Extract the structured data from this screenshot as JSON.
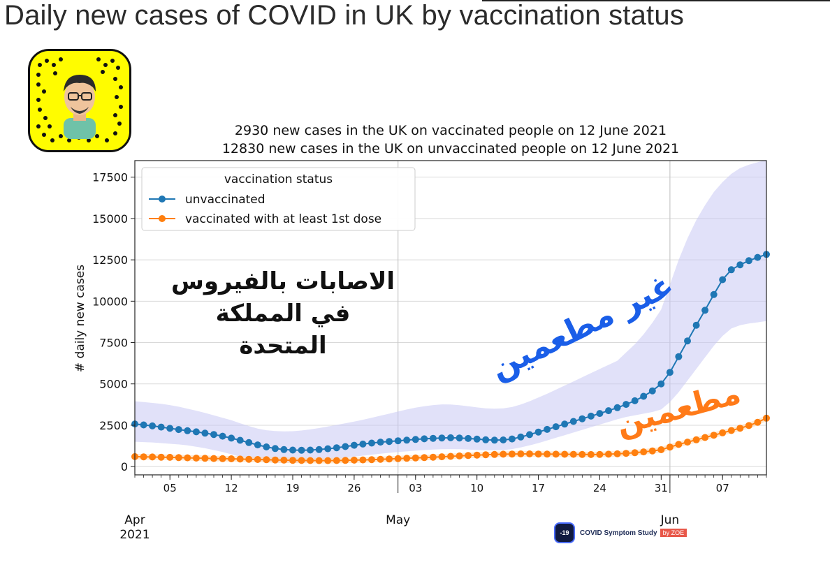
{
  "page_title": "Daily new cases of COVID in UK by vaccination status",
  "chart_data": {
    "type": "line",
    "title": "2930 new cases in the UK on vaccinated people on 12 June 2021",
    "subtitle": "12830 new cases in the UK on unvaccinated people on 12 June 2021",
    "xlabel": "",
    "ylabel": "# daily new cases",
    "xlim": [
      "2021-04-01",
      "2021-06-12"
    ],
    "ylim": [
      -500,
      18500
    ],
    "yticks": [
      0,
      2500,
      5000,
      7500,
      10000,
      12500,
      15000,
      17500
    ],
    "ytick_labels": [
      "0",
      "2500",
      "5000",
      "7500",
      "10000",
      "12500",
      "15000",
      "17500"
    ],
    "xticks": [
      "2021-04-05",
      "2021-04-12",
      "2021-04-19",
      "2021-04-26",
      "2021-05-03",
      "2021-05-10",
      "2021-05-17",
      "2021-05-24",
      "2021-05-31",
      "2021-06-07"
    ],
    "xtick_labels": [
      "05",
      "12",
      "19",
      "26",
      "03",
      "10",
      "17",
      "24",
      "31",
      "07"
    ],
    "major_ticks": [
      "2021-05-01",
      "2021-06-01"
    ],
    "month_labels": [
      {
        "date": "2021-04-01",
        "label": "Apr\n2021"
      },
      {
        "date": "2021-05-01",
        "label": "May"
      },
      {
        "date": "2021-06-01",
        "label": "Jun"
      }
    ],
    "grid": "major",
    "legend": {
      "title": "vaccination status",
      "placement": "top-left"
    },
    "series": [
      {
        "name": "unvaccinated",
        "color": "#1f77b4",
        "x": [
          "2021-04-01",
          "2021-04-02",
          "2021-04-03",
          "2021-04-04",
          "2021-04-05",
          "2021-04-06",
          "2021-04-07",
          "2021-04-08",
          "2021-04-09",
          "2021-04-10",
          "2021-04-11",
          "2021-04-12",
          "2021-04-13",
          "2021-04-14",
          "2021-04-15",
          "2021-04-16",
          "2021-04-17",
          "2021-04-18",
          "2021-04-19",
          "2021-04-20",
          "2021-04-21",
          "2021-04-22",
          "2021-04-23",
          "2021-04-24",
          "2021-04-25",
          "2021-04-26",
          "2021-04-27",
          "2021-04-28",
          "2021-04-29",
          "2021-04-30",
          "2021-05-01",
          "2021-05-02",
          "2021-05-03",
          "2021-05-04",
          "2021-05-05",
          "2021-05-06",
          "2021-05-07",
          "2021-05-08",
          "2021-05-09",
          "2021-05-10",
          "2021-05-11",
          "2021-05-12",
          "2021-05-13",
          "2021-05-14",
          "2021-05-15",
          "2021-05-16",
          "2021-05-17",
          "2021-05-18",
          "2021-05-19",
          "2021-05-20",
          "2021-05-21",
          "2021-05-22",
          "2021-05-23",
          "2021-05-24",
          "2021-05-25",
          "2021-05-26",
          "2021-05-27",
          "2021-05-28",
          "2021-05-29",
          "2021-05-30",
          "2021-05-31",
          "2021-06-01",
          "2021-06-02",
          "2021-06-03",
          "2021-06-04",
          "2021-06-05",
          "2021-06-06",
          "2021-06-07",
          "2021-06-08",
          "2021-06-09",
          "2021-06-10",
          "2021-06-11",
          "2021-06-12"
        ],
        "values": [
          2580,
          2520,
          2460,
          2390,
          2310,
          2240,
          2170,
          2100,
          2020,
          1940,
          1840,
          1720,
          1590,
          1450,
          1310,
          1190,
          1090,
          1030,
          1000,
          990,
          1000,
          1030,
          1080,
          1140,
          1210,
          1290,
          1360,
          1420,
          1480,
          1520,
          1560,
          1600,
          1640,
          1680,
          1710,
          1730,
          1740,
          1730,
          1700,
          1660,
          1620,
          1600,
          1610,
          1670,
          1790,
          1930,
          2090,
          2250,
          2410,
          2570,
          2730,
          2890,
          3050,
          3210,
          3380,
          3560,
          3760,
          3980,
          4250,
          4580,
          5000,
          5700,
          6650,
          7600,
          8550,
          9450,
          10400,
          11300,
          11900,
          12200,
          12450,
          12650,
          12830
        ]
      },
      {
        "name": "vaccinated with at least 1st dose",
        "color": "#ff7f0e",
        "x": [
          "2021-04-01",
          "2021-04-02",
          "2021-04-03",
          "2021-04-04",
          "2021-04-05",
          "2021-04-06",
          "2021-04-07",
          "2021-04-08",
          "2021-04-09",
          "2021-04-10",
          "2021-04-11",
          "2021-04-12",
          "2021-04-13",
          "2021-04-14",
          "2021-04-15",
          "2021-04-16",
          "2021-04-17",
          "2021-04-18",
          "2021-04-19",
          "2021-04-20",
          "2021-04-21",
          "2021-04-22",
          "2021-04-23",
          "2021-04-24",
          "2021-04-25",
          "2021-04-26",
          "2021-04-27",
          "2021-04-28",
          "2021-04-29",
          "2021-04-30",
          "2021-05-01",
          "2021-05-02",
          "2021-05-03",
          "2021-05-04",
          "2021-05-05",
          "2021-05-06",
          "2021-05-07",
          "2021-05-08",
          "2021-05-09",
          "2021-05-10",
          "2021-05-11",
          "2021-05-12",
          "2021-05-13",
          "2021-05-14",
          "2021-05-15",
          "2021-05-16",
          "2021-05-17",
          "2021-05-18",
          "2021-05-19",
          "2021-05-20",
          "2021-05-21",
          "2021-05-22",
          "2021-05-23",
          "2021-05-24",
          "2021-05-25",
          "2021-05-26",
          "2021-05-27",
          "2021-05-28",
          "2021-05-29",
          "2021-05-30",
          "2021-05-31",
          "2021-06-01",
          "2021-06-02",
          "2021-06-03",
          "2021-06-04",
          "2021-06-05",
          "2021-06-06",
          "2021-06-07",
          "2021-06-08",
          "2021-06-09",
          "2021-06-10",
          "2021-06-11",
          "2021-06-12"
        ],
        "values": [
          600,
          590,
          580,
          570,
          560,
          545,
          530,
          515,
          500,
          490,
          480,
          470,
          455,
          440,
          430,
          415,
          400,
          390,
          380,
          370,
          365,
          360,
          360,
          365,
          375,
          390,
          405,
          420,
          440,
          460,
          480,
          500,
          520,
          545,
          570,
          595,
          620,
          645,
          670,
          695,
          715,
          735,
          750,
          760,
          765,
          765,
          760,
          755,
          750,
          745,
          740,
          735,
          730,
          735,
          750,
          770,
          800,
          840,
          890,
          950,
          1020,
          1180,
          1340,
          1480,
          1620,
          1760,
          1900,
          2040,
          2180,
          2320,
          2480,
          2680,
          2930
        ]
      }
    ],
    "ci_band": {
      "series": "unvaccinated",
      "color": "#c8c8f4",
      "upper": [
        3950,
        3900,
        3850,
        3800,
        3720,
        3620,
        3500,
        3380,
        3250,
        3100,
        2950,
        2800,
        2620,
        2450,
        2300,
        2200,
        2150,
        2130,
        2140,
        2180,
        2250,
        2330,
        2420,
        2520,
        2620,
        2720,
        2830,
        2950,
        3080,
        3200,
        3330,
        3450,
        3560,
        3650,
        3720,
        3760,
        3750,
        3710,
        3650,
        3580,
        3520,
        3500,
        3520,
        3600,
        3750,
        3950,
        4180,
        4400,
        4650,
        4900,
        5150,
        5400,
        5650,
        5900,
        6150,
        6400,
        6900,
        7400,
        8000,
        8700,
        9500,
        11000,
        12500,
        13800,
        14900,
        15800,
        16600,
        17200,
        17700,
        18050,
        18250,
        18400,
        18550
      ],
      "lower": [
        1500,
        1480,
        1460,
        1420,
        1380,
        1340,
        1280,
        1200,
        1110,
        1000,
        880,
        740,
        600,
        470,
        360,
        280,
        240,
        220,
        220,
        240,
        280,
        330,
        390,
        460,
        530,
        600,
        660,
        720,
        780,
        830,
        880,
        920,
        960,
        1000,
        1030,
        1050,
        1060,
        1050,
        1030,
        1000,
        980,
        980,
        1000,
        1060,
        1160,
        1280,
        1420,
        1580,
        1740,
        1900,
        2060,
        2220,
        2380,
        2540,
        2700,
        2860,
        3000,
        3100,
        3200,
        3300,
        3450,
        3900,
        4500,
        5200,
        5900,
        6600,
        7300,
        7900,
        8350,
        8550,
        8650,
        8720,
        8800
      ]
    }
  },
  "annotations": {
    "arabic_main": [
      "الاصابات بالفيروس",
      "في المملكة",
      "المتحدة"
    ],
    "arabic_unvaccinated": "غير مطعمين",
    "arabic_vaccinated": "مطعمين"
  },
  "logo": {
    "mark": "-19",
    "text": "COVID Symptom Study",
    "by": "by ZOE"
  },
  "snapcode": {
    "icon": "snapchat-snapcode-icon",
    "color": "#fffc00"
  }
}
